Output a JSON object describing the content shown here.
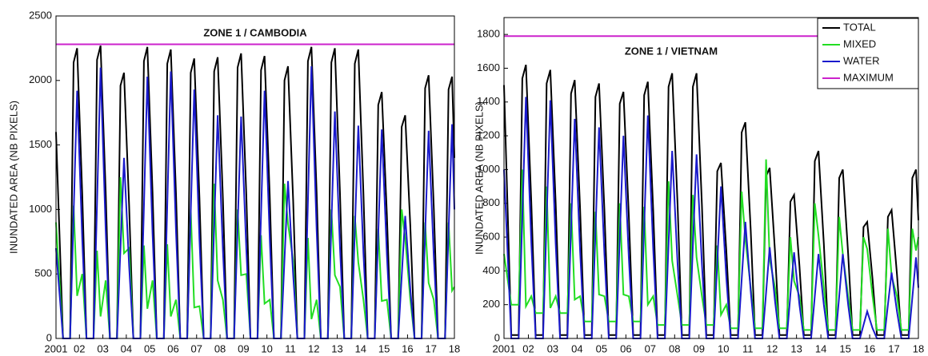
{
  "chart_data": [
    {
      "type": "line",
      "title": "ZONE 1 / CAMBODIA",
      "y_label": "INUNDATED AREA (NB PIXELS)",
      "x": [
        2001,
        2001.3,
        2001.6,
        2001.75,
        2001.9,
        2002.12,
        2002.3,
        2002.6,
        2002.75,
        2002.9,
        2003.12,
        2003.3,
        2003.6,
        2003.75,
        2003.9,
        2004.12,
        2004.3,
        2004.6,
        2004.75,
        2004.9,
        2005.12,
        2005.3,
        2005.6,
        2005.75,
        2005.9,
        2006.12,
        2006.3,
        2006.6,
        2006.75,
        2006.9,
        2007.12,
        2007.3,
        2007.6,
        2007.75,
        2007.9,
        2008.12,
        2008.3,
        2008.6,
        2008.75,
        2008.9,
        2009.12,
        2009.3,
        2009.6,
        2009.75,
        2009.9,
        2010.12,
        2010.3,
        2010.6,
        2010.75,
        2010.9,
        2011.12,
        2011.3,
        2011.6,
        2011.75,
        2011.9,
        2012.12,
        2012.3,
        2012.6,
        2012.75,
        2012.9,
        2013.12,
        2013.3,
        2013.6,
        2013.75,
        2013.9,
        2014.12,
        2014.3,
        2014.6,
        2014.75,
        2014.9,
        2015.12,
        2015.3,
        2015.6,
        2015.75,
        2015.9,
        2016.12,
        2016.3,
        2016.6,
        2016.75,
        2016.9,
        2017.12,
        2017.3,
        2017.6,
        2017.75,
        2017.9,
        2018
      ],
      "series": [
        {
          "color": "#000000",
          "values": [
            1600,
            0,
            0,
            2140,
            2250,
            1120,
            0,
            0,
            2160,
            2270,
            1140,
            0,
            0,
            1960,
            2060,
            1030,
            0,
            0,
            2150,
            2260,
            1130,
            0,
            0,
            2130,
            2240,
            1120,
            0,
            0,
            2060,
            2170,
            1090,
            0,
            0,
            2070,
            2180,
            1090,
            0,
            0,
            2100,
            2210,
            1110,
            0,
            0,
            2080,
            2190,
            1100,
            0,
            0,
            2000,
            2110,
            1060,
            0,
            0,
            2150,
            2260,
            1130,
            0,
            0,
            2140,
            2250,
            1120,
            0,
            0,
            2130,
            2240,
            1120,
            0,
            0,
            1810,
            1910,
            960,
            0,
            0,
            1640,
            1730,
            870,
            0,
            0,
            1940,
            2040,
            1020,
            0,
            0,
            1930,
            2030,
            1400
          ]
        },
        {
          "color": "#22dd22",
          "values": [
            900,
            0,
            0,
            1030,
            330,
            500,
            0,
            0,
            680,
            170,
            450,
            0,
            0,
            1250,
            660,
            700,
            0,
            0,
            720,
            230,
            450,
            0,
            0,
            730,
            170,
            300,
            0,
            0,
            1000,
            240,
            250,
            0,
            0,
            1200,
            450,
            300,
            0,
            0,
            1000,
            490,
            500,
            0,
            0,
            800,
            270,
            300,
            0,
            0,
            1200,
            890,
            600,
            0,
            0,
            780,
            150,
            300,
            0,
            0,
            1000,
            490,
            400,
            0,
            0,
            950,
            590,
            300,
            0,
            0,
            850,
            290,
            300,
            0,
            0,
            1000,
            780,
            300,
            0,
            0,
            900,
            430,
            300,
            0,
            0,
            900,
            370,
            400
          ]
        },
        {
          "color": "#1a1acc",
          "values": [
            700,
            0,
            0,
            960,
            1920,
            770,
            0,
            0,
            1050,
            2100,
            840,
            0,
            0,
            700,
            1400,
            560,
            0,
            0,
            1020,
            2030,
            810,
            0,
            0,
            1040,
            2070,
            830,
            0,
            0,
            970,
            1930,
            770,
            0,
            0,
            870,
            1730,
            690,
            0,
            0,
            860,
            1720,
            690,
            0,
            0,
            960,
            1920,
            770,
            0,
            0,
            610,
            1220,
            490,
            0,
            0,
            1060,
            2110,
            840,
            0,
            0,
            880,
            1760,
            700,
            0,
            0,
            830,
            1650,
            660,
            0,
            0,
            810,
            1620,
            650,
            0,
            0,
            480,
            950,
            380,
            0,
            0,
            810,
            1610,
            640,
            0,
            0,
            830,
            1660,
            1000
          ]
        }
      ],
      "reference": {
        "color": "#cc22cc",
        "value": 2280
      },
      "xlim": [
        2001,
        2018
      ],
      "ylim": [
        0,
        2500
      ],
      "xticks": [
        2001,
        {
          "value": 2002,
          "label": "02"
        },
        {
          "value": 2003,
          "label": "03"
        },
        {
          "value": 2004,
          "label": "04"
        },
        {
          "value": 2005,
          "label": "05"
        },
        {
          "value": 2006,
          "label": "06"
        },
        {
          "value": 2007,
          "label": "07"
        },
        {
          "value": 2008,
          "label": "08"
        },
        {
          "value": 2009,
          "label": "09"
        },
        {
          "value": 2010,
          "label": "10"
        },
        {
          "value": 2011,
          "label": "11"
        },
        {
          "value": 2012,
          "label": "12"
        },
        {
          "value": 2013,
          "label": "13"
        },
        {
          "value": 2014,
          "label": "14"
        },
        {
          "value": 2015,
          "label": "15"
        },
        {
          "value": 2016,
          "label": "16"
        },
        {
          "value": 2017,
          "label": "17"
        },
        {
          "value": 2018,
          "label": "18"
        }
      ],
      "yticks": [
        0,
        500,
        1000,
        1500,
        2000,
        2500
      ]
    },
    {
      "type": "line",
      "title": "ZONE 1 / VIETNAM",
      "y_label": "INUNDATED AREA (NB PIXELS)",
      "x": [
        2001,
        2001.3,
        2001.6,
        2001.75,
        2001.9,
        2002.12,
        2002.3,
        2002.6,
        2002.75,
        2002.9,
        2003.12,
        2003.3,
        2003.6,
        2003.75,
        2003.9,
        2004.12,
        2004.3,
        2004.6,
        2004.75,
        2004.9,
        2005.12,
        2005.3,
        2005.6,
        2005.75,
        2005.9,
        2006.12,
        2006.3,
        2006.6,
        2006.75,
        2006.9,
        2007.12,
        2007.3,
        2007.6,
        2007.75,
        2007.9,
        2008.12,
        2008.3,
        2008.6,
        2008.75,
        2008.9,
        2009.12,
        2009.3,
        2009.6,
        2009.75,
        2009.9,
        2010.12,
        2010.3,
        2010.6,
        2010.75,
        2010.9,
        2011.12,
        2011.3,
        2011.6,
        2011.75,
        2011.9,
        2012.12,
        2012.3,
        2012.6,
        2012.75,
        2012.9,
        2013.12,
        2013.3,
        2013.6,
        2013.75,
        2013.9,
        2014.12,
        2014.3,
        2014.6,
        2014.75,
        2014.9,
        2015.12,
        2015.3,
        2015.6,
        2015.75,
        2015.9,
        2016.12,
        2016.3,
        2016.6,
        2016.75,
        2016.9,
        2017.12,
        2017.3,
        2017.6,
        2017.75,
        2017.9,
        2018
      ],
      "series": [
        {
          "name": "TOTAL",
          "color": "#000000",
          "values": [
            1500,
            20,
            20,
            1540,
            1620,
            810,
            20,
            20,
            1510,
            1590,
            800,
            20,
            20,
            1450,
            1530,
            770,
            20,
            20,
            1430,
            1510,
            760,
            20,
            20,
            1390,
            1460,
            730,
            20,
            20,
            1440,
            1520,
            760,
            20,
            20,
            1490,
            1570,
            790,
            20,
            20,
            1490,
            1570,
            790,
            20,
            20,
            990,
            1040,
            520,
            20,
            20,
            1220,
            1280,
            640,
            20,
            20,
            960,
            1010,
            510,
            20,
            20,
            810,
            850,
            430,
            20,
            20,
            1050,
            1110,
            560,
            20,
            20,
            950,
            1000,
            500,
            20,
            20,
            660,
            690,
            350,
            20,
            20,
            720,
            760,
            380,
            20,
            20,
            950,
            1000,
            700
          ]
        },
        {
          "name": "MIXED",
          "color": "#22dd22",
          "values": [
            500,
            200,
            200,
            1000,
            190,
            250,
            150,
            150,
            900,
            180,
            250,
            150,
            150,
            800,
            230,
            250,
            100,
            100,
            750,
            260,
            250,
            100,
            100,
            800,
            260,
            250,
            100,
            100,
            780,
            200,
            250,
            80,
            80,
            930,
            460,
            250,
            80,
            80,
            850,
            480,
            250,
            80,
            80,
            550,
            140,
            200,
            60,
            60,
            870,
            590,
            300,
            60,
            60,
            1060,
            470,
            300,
            60,
            60,
            600,
            340,
            250,
            50,
            50,
            800,
            610,
            300,
            50,
            50,
            720,
            500,
            250,
            50,
            50,
            600,
            530,
            250,
            50,
            50,
            650,
            370,
            250,
            50,
            50,
            650,
            520,
            600
          ]
        },
        {
          "name": "WATER",
          "color": "#1a1acc",
          "values": [
            1000,
            0,
            0,
            720,
            1430,
            570,
            0,
            0,
            710,
            1410,
            560,
            0,
            0,
            650,
            1300,
            520,
            0,
            0,
            630,
            1250,
            500,
            0,
            0,
            600,
            1200,
            480,
            0,
            0,
            660,
            1320,
            530,
            0,
            0,
            560,
            1110,
            440,
            0,
            0,
            550,
            1090,
            440,
            0,
            0,
            450,
            900,
            360,
            0,
            0,
            350,
            690,
            280,
            0,
            0,
            270,
            540,
            220,
            0,
            0,
            260,
            510,
            200,
            0,
            0,
            250,
            500,
            200,
            0,
            0,
            250,
            500,
            200,
            0,
            0,
            80,
            160,
            60,
            0,
            0,
            200,
            390,
            160,
            0,
            0,
            240,
            480,
            300
          ]
        }
      ],
      "reference": {
        "name": "MAXIMUM",
        "color": "#cc22cc",
        "value": 1790
      },
      "legend": "upper right",
      "xlim": [
        2001,
        2018
      ],
      "ylim": [
        0,
        1900
      ],
      "xticks": [
        2001,
        {
          "value": 2002,
          "label": "02"
        },
        {
          "value": 2003,
          "label": "03"
        },
        {
          "value": 2004,
          "label": "04"
        },
        {
          "value": 2005,
          "label": "05"
        },
        {
          "value": 2006,
          "label": "06"
        },
        {
          "value": 2007,
          "label": "07"
        },
        {
          "value": 2008,
          "label": "08"
        },
        {
          "value": 2009,
          "label": "09"
        },
        {
          "value": 2010,
          "label": "10"
        },
        {
          "value": 2011,
          "label": "11"
        },
        {
          "value": 2012,
          "label": "12"
        },
        {
          "value": 2013,
          "label": "13"
        },
        {
          "value": 2014,
          "label": "14"
        },
        {
          "value": 2015,
          "label": "15"
        },
        {
          "value": 2016,
          "label": "16"
        },
        {
          "value": 2017,
          "label": "17"
        },
        {
          "value": 2018,
          "label": "18"
        }
      ],
      "yticks": [
        0,
        200,
        400,
        600,
        800,
        1000,
        1200,
        1400,
        1600,
        1800
      ]
    }
  ]
}
